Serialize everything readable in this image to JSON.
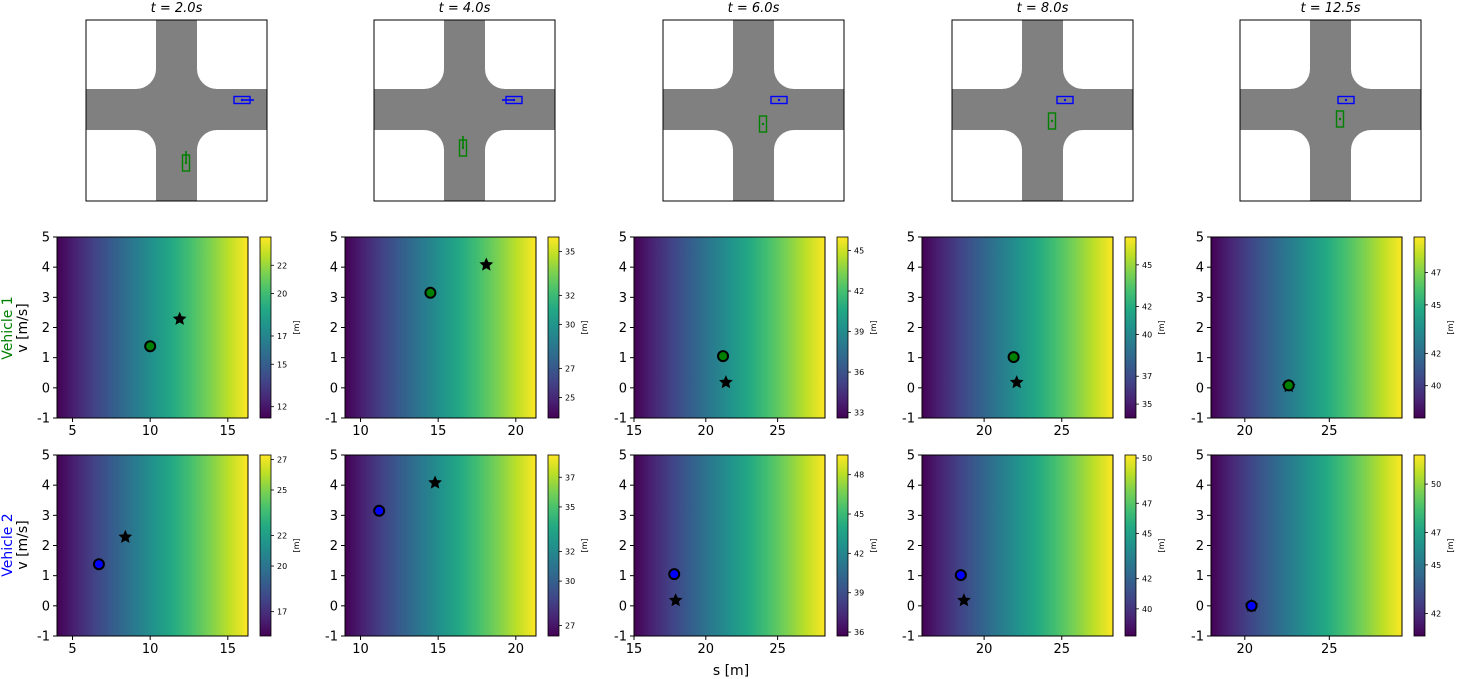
{
  "colors": {
    "road": "#808080",
    "vehicle1": "#008000",
    "vehicle2": "#0000ff",
    "marker_edge": "#000000",
    "colormap": [
      "#440154",
      "#482475",
      "#414487",
      "#355f8d",
      "#2a788e",
      "#21918c",
      "#22a884",
      "#44bf70",
      "#7ad151",
      "#bddf26",
      "#fde725"
    ]
  },
  "row_labels": {
    "vehicle1": {
      "name": "Vehicle 1",
      "unit": "v [m/s]"
    },
    "vehicle2": {
      "name": "Vehicle 2",
      "unit": "v [m/s]"
    }
  },
  "x_axis_label": "s [m]",
  "scenes": [
    {
      "title": "t = 2.0s",
      "vehicle1": {
        "heading": "north",
        "arrow": true
      },
      "vehicle2": {
        "heading": "east",
        "arrow": true
      }
    },
    {
      "title": "t = 4.0s",
      "vehicle1": {
        "heading": "north",
        "arrow": true
      },
      "vehicle2": {
        "heading": "west",
        "arrow": true
      }
    },
    {
      "title": "t = 6.0s",
      "vehicle1": {
        "heading": "north",
        "arrow": false
      },
      "vehicle2": {
        "heading": "east",
        "arrow": false
      }
    },
    {
      "title": "t = 8.0s",
      "vehicle1": {
        "heading": "north",
        "arrow": false
      },
      "vehicle2": {
        "heading": "east",
        "arrow": false
      }
    },
    {
      "title": "t = 12.5s",
      "vehicle1": {
        "heading": "north",
        "arrow": false
      },
      "vehicle2": {
        "heading": "east",
        "arrow": false
      }
    }
  ],
  "chart_data": [
    {
      "type": "heatmap",
      "vehicle": "Vehicle 1",
      "time": "t = 2.0s",
      "xlabel": "",
      "ylabel": "v [m/s]",
      "xlim": [
        4,
        16.3
      ],
      "ylim": [
        -1,
        5
      ],
      "xticks": [
        5,
        10,
        15
      ],
      "yticks": [
        -1,
        0,
        1,
        2,
        3,
        4,
        5
      ],
      "colorbar": {
        "label": "[m]",
        "range": [
          11.2,
          24.0
        ],
        "ticks": [
          12,
          15,
          17,
          20,
          22
        ]
      },
      "current": {
        "s": 10.0,
        "v": 1.38
      },
      "target": {
        "s": 11.9,
        "v": 2.28
      }
    },
    {
      "type": "heatmap",
      "vehicle": "Vehicle 1",
      "time": "t = 4.0s",
      "xlabel": "",
      "ylabel": "",
      "xlim": [
        9,
        21.3
      ],
      "ylim": [
        -1,
        5
      ],
      "xticks": [
        10,
        15,
        20
      ],
      "yticks": [
        -1,
        0,
        1,
        2,
        3,
        4,
        5
      ],
      "colorbar": {
        "label": "[m]",
        "range": [
          23.6,
          36.0
        ],
        "ticks": [
          25,
          27,
          30,
          32,
          35
        ]
      },
      "current": {
        "s": 14.5,
        "v": 3.15
      },
      "target": {
        "s": 18.1,
        "v": 4.08
      }
    },
    {
      "type": "heatmap",
      "vehicle": "Vehicle 1",
      "time": "t = 6.0s",
      "xlabel": "",
      "ylabel": "",
      "xlim": [
        15,
        28.3
      ],
      "ylim": [
        -1,
        5
      ],
      "xticks": [
        15,
        20,
        25
      ],
      "yticks": [
        -1,
        0,
        1,
        2,
        3,
        4,
        5
      ],
      "colorbar": {
        "label": "[m]",
        "range": [
          32.6,
          46.0
        ],
        "ticks": [
          33,
          36,
          39,
          42,
          45
        ]
      },
      "current": {
        "s": 21.2,
        "v": 1.05
      },
      "target": {
        "s": 21.4,
        "v": 0.18
      }
    },
    {
      "type": "heatmap",
      "vehicle": "Vehicle 1",
      "time": "t = 8.0s",
      "xlabel": "",
      "ylabel": "",
      "xlim": [
        16,
        28.3
      ],
      "ylim": [
        -1,
        5
      ],
      "xticks": [
        20,
        25
      ],
      "yticks": [
        -1,
        0,
        1,
        2,
        3,
        4,
        5
      ],
      "colorbar": {
        "label": "[m]",
        "range": [
          34.0,
          47.0
        ],
        "ticks": [
          35,
          37,
          40,
          42,
          45
        ]
      },
      "current": {
        "s": 21.9,
        "v": 1.02
      },
      "target": {
        "s": 22.1,
        "v": 0.18
      }
    },
    {
      "type": "heatmap",
      "vehicle": "Vehicle 1",
      "time": "t = 12.5s",
      "xlabel": "",
      "ylabel": "",
      "xlim": [
        18,
        29.3
      ],
      "ylim": [
        -1,
        5
      ],
      "xticks": [
        20,
        25
      ],
      "yticks": [
        -1,
        0,
        1,
        2,
        3,
        4,
        5
      ],
      "colorbar": {
        "label": "[m]",
        "range": [
          38.0,
          49.2
        ],
        "ticks": [
          40,
          42,
          45,
          47
        ]
      },
      "current": {
        "s": 22.6,
        "v": 0.08
      },
      "target": {
        "s": 22.6,
        "v": 0.05
      }
    },
    {
      "type": "heatmap",
      "vehicle": "Vehicle 2",
      "time": "t = 2.0s",
      "xlabel": "",
      "ylabel": "v [m/s]",
      "xlim": [
        4,
        16.3
      ],
      "ylim": [
        -1,
        5
      ],
      "xticks": [
        5,
        10,
        15
      ],
      "yticks": [
        -1,
        0,
        1,
        2,
        3,
        4,
        5
      ],
      "colorbar": {
        "label": "[m]",
        "range": [
          15.4,
          27.3
        ],
        "ticks": [
          17,
          20,
          22,
          25,
          27
        ]
      },
      "current": {
        "s": 6.7,
        "v": 1.38
      },
      "target": {
        "s": 8.4,
        "v": 2.28
      }
    },
    {
      "type": "heatmap",
      "vehicle": "Vehicle 2",
      "time": "t = 4.0s",
      "xlabel": "",
      "ylabel": "",
      "xlim": [
        9,
        21.3
      ],
      "ylim": [
        -1,
        5
      ],
      "xticks": [
        10,
        15,
        20
      ],
      "yticks": [
        -1,
        0,
        1,
        2,
        3,
        4,
        5
      ],
      "colorbar": {
        "label": "[m]",
        "range": [
          26.3,
          38.5
        ],
        "ticks": [
          27,
          30,
          32,
          35,
          37
        ]
      },
      "current": {
        "s": 11.2,
        "v": 3.15
      },
      "target": {
        "s": 14.8,
        "v": 4.08
      }
    },
    {
      "type": "heatmap",
      "vehicle": "Vehicle 2",
      "time": "t = 6.0s",
      "xlabel": "s [m]",
      "ylabel": "",
      "xlim": [
        15,
        28.3
      ],
      "ylim": [
        -1,
        5
      ],
      "xticks": [
        15,
        20,
        25
      ],
      "yticks": [
        -1,
        0,
        1,
        2,
        3,
        4,
        5
      ],
      "colorbar": {
        "label": "[m]",
        "range": [
          35.7,
          49.5
        ],
        "ticks": [
          36,
          39,
          42,
          45,
          48
        ]
      },
      "current": {
        "s": 17.8,
        "v": 1.05
      },
      "target": {
        "s": 17.9,
        "v": 0.18
      }
    },
    {
      "type": "heatmap",
      "vehicle": "Vehicle 2",
      "time": "t = 8.0s",
      "xlabel": "",
      "ylabel": "",
      "xlim": [
        16,
        28.3
      ],
      "ylim": [
        -1,
        5
      ],
      "xticks": [
        20,
        25
      ],
      "yticks": [
        -1,
        0,
        1,
        2,
        3,
        4,
        5
      ],
      "colorbar": {
        "label": "[m]",
        "range": [
          38.2,
          50.2
        ],
        "ticks": [
          40,
          42,
          45,
          47,
          50
        ]
      },
      "current": {
        "s": 18.5,
        "v": 1.02
      },
      "target": {
        "s": 18.7,
        "v": 0.18
      }
    },
    {
      "type": "heatmap",
      "vehicle": "Vehicle 2",
      "time": "t = 12.5s",
      "xlabel": "",
      "ylabel": "",
      "xlim": [
        18,
        29.3
      ],
      "ylim": [
        -1,
        5
      ],
      "xticks": [
        20,
        25
      ],
      "yticks": [
        -1,
        0,
        1,
        2,
        3,
        4,
        5
      ],
      "colorbar": {
        "label": "[m]",
        "range": [
          40.6,
          51.8
        ],
        "ticks": [
          42,
          45,
          47,
          50
        ]
      },
      "current": {
        "s": 20.4,
        "v": 0.0
      },
      "target": {
        "s": 20.4,
        "v": 0.0
      }
    }
  ]
}
